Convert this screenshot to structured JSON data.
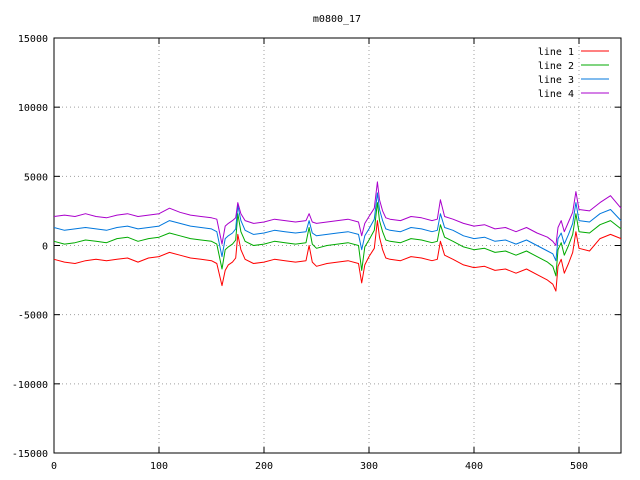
{
  "chart_data": {
    "type": "line",
    "title": "m0800_17",
    "xlabel": "",
    "ylabel": "",
    "xlim": [
      0,
      540
    ],
    "ylim": [
      -15000,
      15000
    ],
    "x_ticks": [
      0,
      100,
      200,
      300,
      400,
      500
    ],
    "y_ticks": [
      -15000,
      -10000,
      -5000,
      0,
      5000,
      10000,
      15000
    ],
    "grid": true,
    "legend_position": "top-right",
    "series": [
      {
        "name": "line 1",
        "color": "#ff0000",
        "x": [
          0,
          10,
          20,
          30,
          40,
          50,
          60,
          70,
          80,
          90,
          100,
          110,
          120,
          130,
          140,
          150,
          155,
          160,
          163,
          166,
          170,
          173,
          175,
          178,
          182,
          190,
          200,
          210,
          220,
          230,
          240,
          243,
          246,
          250,
          260,
          270,
          280,
          290,
          293,
          296,
          300,
          305,
          308,
          310,
          313,
          316,
          320,
          330,
          340,
          350,
          360,
          365,
          368,
          372,
          380,
          390,
          400,
          410,
          420,
          430,
          440,
          450,
          460,
          470,
          475,
          478,
          480,
          483,
          486,
          490,
          494,
          497,
          500,
          510,
          520,
          530,
          540
        ],
        "y": [
          -1000,
          -1200,
          -1300,
          -1100,
          -1000,
          -1100,
          -1000,
          -900,
          -1200,
          -900,
          -800,
          -500,
          -700,
          -900,
          -1000,
          -1100,
          -1300,
          -2900,
          -1800,
          -1400,
          -1200,
          -900,
          800,
          -300,
          -1000,
          -1300,
          -1200,
          -1000,
          -1100,
          -1200,
          -1100,
          0,
          -1200,
          -1500,
          -1300,
          -1200,
          -1100,
          -1300,
          -2700,
          -1400,
          -800,
          -200,
          1800,
          600,
          -300,
          -900,
          -1000,
          -1100,
          -800,
          -900,
          -1100,
          -1000,
          300,
          -700,
          -1000,
          -1400,
          -1600,
          -1500,
          -1800,
          -1700,
          -2000,
          -1700,
          -2100,
          -2500,
          -2800,
          -3300,
          -1500,
          -1000,
          -2000,
          -1300,
          -500,
          1000,
          -200,
          -400,
          500,
          800,
          500
        ]
      },
      {
        "name": "line 2",
        "color": "#00aa00",
        "x": [
          0,
          10,
          20,
          30,
          40,
          50,
          60,
          70,
          80,
          90,
          100,
          110,
          120,
          130,
          140,
          150,
          155,
          160,
          163,
          166,
          170,
          173,
          175,
          178,
          182,
          190,
          200,
          210,
          220,
          230,
          240,
          243,
          246,
          250,
          260,
          270,
          280,
          290,
          293,
          296,
          300,
          305,
          308,
          310,
          313,
          316,
          320,
          330,
          340,
          350,
          360,
          365,
          368,
          372,
          380,
          390,
          400,
          410,
          420,
          430,
          440,
          450,
          460,
          470,
          475,
          478,
          480,
          483,
          486,
          490,
          494,
          497,
          500,
          510,
          520,
          530,
          540
        ],
        "y": [
          300,
          100,
          200,
          400,
          300,
          200,
          500,
          600,
          300,
          500,
          600,
          900,
          700,
          500,
          400,
          300,
          100,
          -1700,
          -300,
          -100,
          100,
          400,
          2300,
          1000,
          300,
          0,
          100,
          300,
          200,
          100,
          200,
          1300,
          100,
          -200,
          0,
          100,
          200,
          0,
          -1800,
          -100,
          400,
          1100,
          3100,
          1800,
          1000,
          400,
          300,
          200,
          500,
          400,
          200,
          300,
          1500,
          600,
          300,
          -100,
          -300,
          -200,
          -500,
          -400,
          -700,
          -400,
          -800,
          -1200,
          -1500,
          -2200,
          -300,
          200,
          -700,
          0,
          800,
          2300,
          1000,
          900,
          1500,
          1800,
          1200
        ]
      },
      {
        "name": "line 3",
        "color": "#0077dd",
        "x": [
          0,
          10,
          20,
          30,
          40,
          50,
          60,
          70,
          80,
          90,
          100,
          110,
          120,
          130,
          140,
          150,
          155,
          160,
          163,
          166,
          170,
          173,
          175,
          178,
          182,
          190,
          200,
          210,
          220,
          230,
          240,
          243,
          246,
          250,
          260,
          270,
          280,
          290,
          293,
          296,
          300,
          305,
          308,
          310,
          313,
          316,
          320,
          330,
          340,
          350,
          360,
          365,
          368,
          372,
          380,
          390,
          400,
          410,
          420,
          430,
          440,
          450,
          460,
          470,
          475,
          478,
          480,
          483,
          486,
          490,
          494,
          497,
          500,
          510,
          520,
          530,
          540
        ],
        "y": [
          1300,
          1100,
          1200,
          1300,
          1200,
          1100,
          1300,
          1400,
          1200,
          1300,
          1400,
          1800,
          1600,
          1400,
          1300,
          1200,
          1000,
          -800,
          500,
          700,
          900,
          1200,
          2900,
          1800,
          1100,
          800,
          900,
          1100,
          1000,
          900,
          1000,
          1800,
          900,
          700,
          800,
          900,
          1000,
          800,
          -300,
          700,
          1200,
          1900,
          3800,
          2600,
          1800,
          1200,
          1100,
          1000,
          1300,
          1200,
          1000,
          1100,
          2300,
          1300,
          1100,
          700,
          500,
          600,
          300,
          400,
          100,
          400,
          0,
          -400,
          -600,
          -1100,
          500,
          900,
          100,
          800,
          1600,
          3100,
          1800,
          1700,
          2300,
          2600,
          1800
        ]
      },
      {
        "name": "line 4",
        "color": "#aa00cc",
        "x": [
          0,
          10,
          20,
          30,
          40,
          50,
          60,
          70,
          80,
          90,
          100,
          110,
          120,
          130,
          140,
          150,
          155,
          160,
          163,
          166,
          170,
          173,
          175,
          178,
          182,
          190,
          200,
          210,
          220,
          230,
          240,
          243,
          246,
          250,
          260,
          270,
          280,
          290,
          293,
          296,
          300,
          305,
          308,
          310,
          313,
          316,
          320,
          330,
          340,
          350,
          360,
          365,
          368,
          372,
          380,
          390,
          400,
          410,
          420,
          430,
          440,
          450,
          460,
          470,
          475,
          478,
          480,
          483,
          486,
          490,
          494,
          497,
          500,
          510,
          520,
          530,
          540
        ],
        "y": [
          2100,
          2200,
          2100,
          2300,
          2100,
          2000,
          2200,
          2300,
          2100,
          2200,
          2300,
          2700,
          2400,
          2200,
          2100,
          2000,
          1900,
          100,
          1400,
          1600,
          1800,
          2000,
          3100,
          2300,
          1800,
          1600,
          1700,
          1900,
          1800,
          1700,
          1800,
          2300,
          1700,
          1600,
          1700,
          1800,
          1900,
          1700,
          700,
          1600,
          2100,
          2700,
          4600,
          3300,
          2500,
          2000,
          1900,
          1800,
          2100,
          2000,
          1800,
          1900,
          3300,
          2100,
          1900,
          1600,
          1400,
          1500,
          1200,
          1300,
          1000,
          1300,
          900,
          600,
          300,
          0,
          1300,
          1800,
          1000,
          1700,
          2400,
          3900,
          2600,
          2500,
          3100,
          3600,
          2700
        ]
      }
    ]
  }
}
